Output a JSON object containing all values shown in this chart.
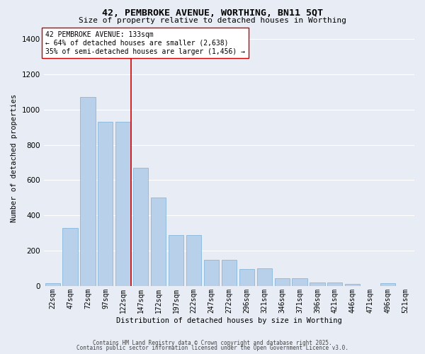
{
  "title": "42, PEMBROKE AVENUE, WORTHING, BN11 5QT",
  "subtitle": "Size of property relative to detached houses in Worthing",
  "xlabel": "Distribution of detached houses by size in Worthing",
  "ylabel": "Number of detached properties",
  "bar_values": [
    15,
    330,
    1070,
    930,
    930,
    670,
    500,
    290,
    290,
    150,
    150,
    95,
    100,
    43,
    43,
    20,
    20,
    13,
    0,
    15
  ],
  "categories": [
    "22sqm",
    "47sqm",
    "72sqm",
    "97sqm",
    "122sqm",
    "147sqm",
    "172sqm",
    "197sqm",
    "222sqm",
    "247sqm",
    "272sqm",
    "296sqm",
    "321sqm",
    "346sqm",
    "371sqm",
    "396sqm",
    "421sqm",
    "446sqm",
    "471sqm",
    "496sqm",
    "521sqm"
  ],
  "bar_color": "#b8d0ea",
  "bar_edgecolor": "#7aafd4",
  "bg_color": "#e8edf5",
  "grid_color": "#ffffff",
  "vline_color": "#cc0000",
  "annotation_text": "42 PEMBROKE AVENUE: 133sqm\n← 64% of detached houses are smaller (2,638)\n35% of semi-detached houses are larger (1,456) →",
  "annotation_box_color": "#ffffff",
  "annotation_box_edgecolor": "#cc0000",
  "footnote1": "Contains HM Land Registry data © Crown copyright and database right 2025.",
  "footnote2": "Contains public sector information licensed under the Open Government Licence v3.0.",
  "ylim": [
    0,
    1450
  ],
  "yticks": [
    0,
    200,
    400,
    600,
    800,
    1000,
    1200,
    1400
  ],
  "title_fontsize": 9.5,
  "subtitle_fontsize": 8,
  "ylabel_fontsize": 7.5,
  "xlabel_fontsize": 7.5,
  "tick_fontsize": 7,
  "annot_fontsize": 7
}
